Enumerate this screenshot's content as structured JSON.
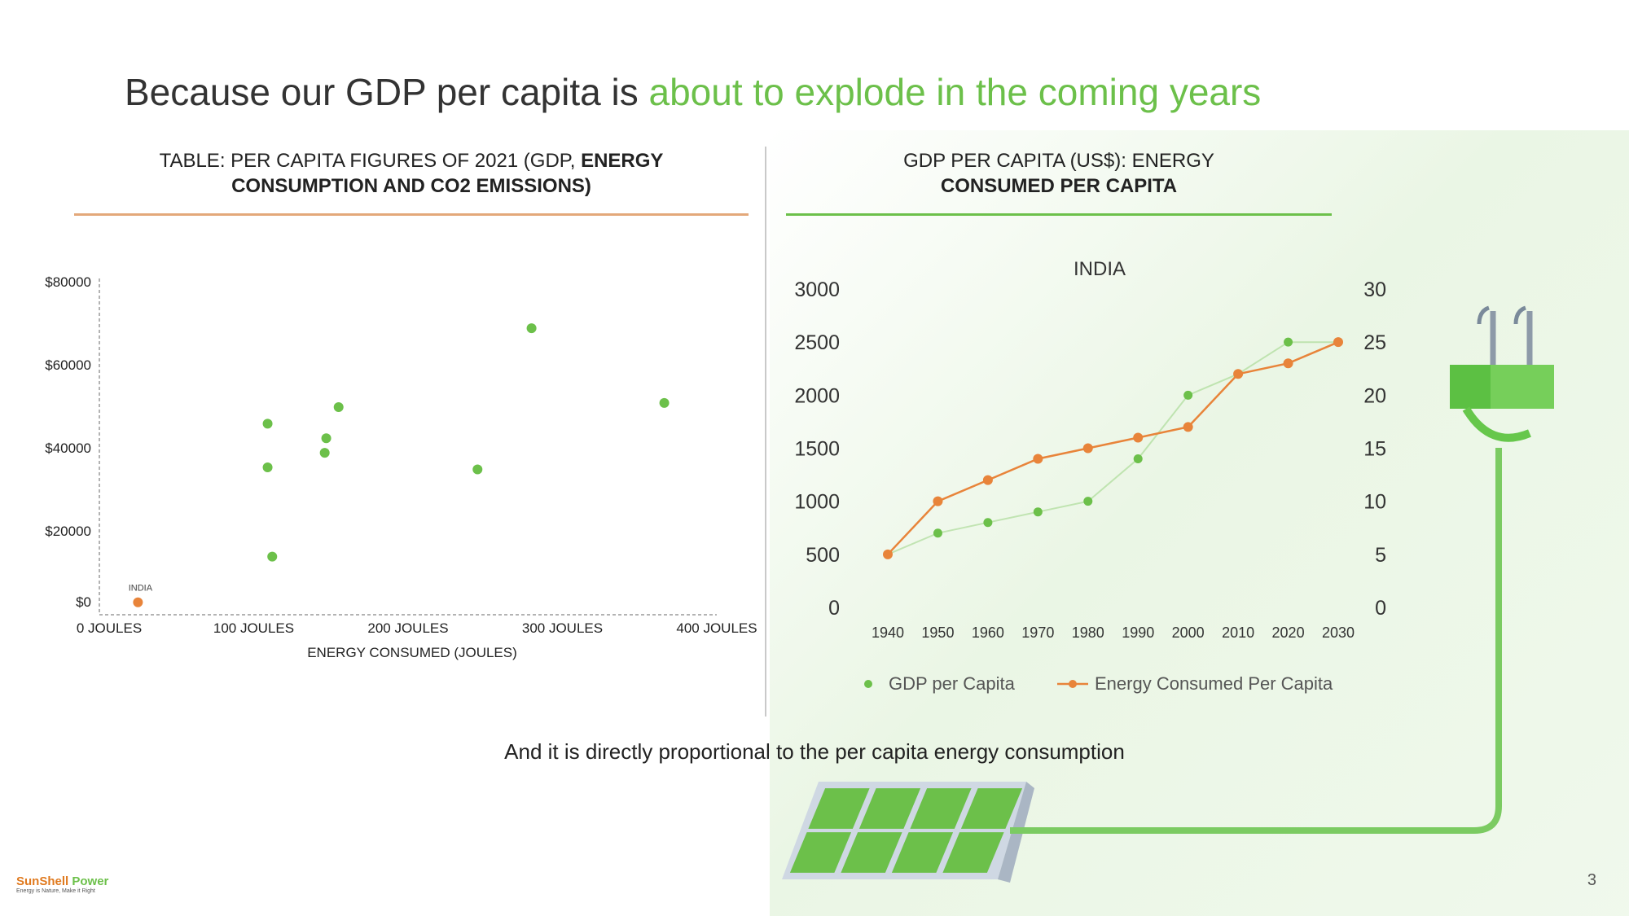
{
  "slide": {
    "title_plain": "Because our GDP per capita is ",
    "title_highlight": "about to explode in the coming years",
    "caption": "And it is directly proportional to the per capita energy consumption",
    "page_number": "3",
    "logo_name_a": "SunShell",
    "logo_name_b": " Power",
    "logo_tagline": "Energy is Nature, Make it Right",
    "colors": {
      "accent_green": "#6cc04a",
      "accent_orange": "#e8843a",
      "rule_orange": "#e3a87a",
      "rule_green": "#6cc04a"
    }
  },
  "left_panel": {
    "title_line1_plain": "TABLE: PER CAPITA FIGURES OF 2021 (GDP, ",
    "title_line1_bold": "ENERGY",
    "title_line2_bold": "CONSUMPTION AND CO2 EMISSIONS)"
  },
  "right_panel": {
    "title_line1": "GDP PER CAPITA (US$): ENERGY",
    "title_line2_bold": "CONSUMED PER CAPITA"
  },
  "chart_data": [
    {
      "type": "scatter",
      "xlabel": "ENERGY CONSUMED (JOULES)",
      "ylabel": "",
      "xlim": [
        0,
        400
      ],
      "ylim": [
        0,
        80000
      ],
      "x_ticks": [
        {
          "value": 0,
          "label": "0 JOULES"
        },
        {
          "value": 100,
          "label": "100 JOULES"
        },
        {
          "value": 200,
          "label": "200 JOULES"
        },
        {
          "value": 300,
          "label": "300 JOULES"
        },
        {
          "value": 400,
          "label": "400 JOULES"
        }
      ],
      "y_ticks": [
        {
          "value": 0,
          "label": "$0"
        },
        {
          "value": 20000,
          "label": "$20000"
        },
        {
          "value": 40000,
          "label": "$40000"
        },
        {
          "value": 60000,
          "label": "$60000"
        },
        {
          "value": 80000,
          "label": "$80000"
        }
      ],
      "points": [
        {
          "x": 25,
          "y": 3000,
          "label": "INDIA",
          "color": "#e8843a"
        },
        {
          "x": 109,
          "y": 46000,
          "color": "#6cc04a"
        },
        {
          "x": 109,
          "y": 35500,
          "color": "#6cc04a"
        },
        {
          "x": 112,
          "y": 14000,
          "color": "#6cc04a"
        },
        {
          "x": 147,
          "y": 42500,
          "color": "#6cc04a"
        },
        {
          "x": 146,
          "y": 39000,
          "color": "#6cc04a"
        },
        {
          "x": 155,
          "y": 50000,
          "color": "#6cc04a"
        },
        {
          "x": 245,
          "y": 35000,
          "color": "#6cc04a"
        },
        {
          "x": 280,
          "y": 69000,
          "color": "#6cc04a"
        },
        {
          "x": 366,
          "y": 51000,
          "color": "#6cc04a"
        }
      ],
      "grid": false
    },
    {
      "type": "line",
      "title": "INDIA",
      "categories": [
        "1940",
        "1950",
        "1960",
        "1970",
        "1980",
        "1990",
        "2000",
        "2010",
        "2020",
        "2030"
      ],
      "y_left_ticks": [
        0,
        500,
        1000,
        1500,
        2000,
        2500,
        3000
      ],
      "y_right_ticks": [
        0,
        5,
        10,
        15,
        20,
        25,
        30
      ],
      "ylim_left": [
        0,
        3000
      ],
      "ylim_right": [
        0,
        30
      ],
      "series": [
        {
          "name": "GDP per Capita",
          "axis": "left",
          "color": "#6cc04a",
          "style": "markers",
          "values": [
            500,
            700,
            800,
            900,
            1000,
            1400,
            2000,
            2200,
            2500,
            2500
          ]
        },
        {
          "name": "Energy Consumed Per Capita",
          "axis": "right",
          "color": "#e8843a",
          "style": "line-markers",
          "values": [
            5,
            10,
            12,
            14,
            15,
            16,
            17,
            22,
            23,
            25
          ]
        }
      ],
      "legend_position": "bottom",
      "grid": false
    }
  ]
}
